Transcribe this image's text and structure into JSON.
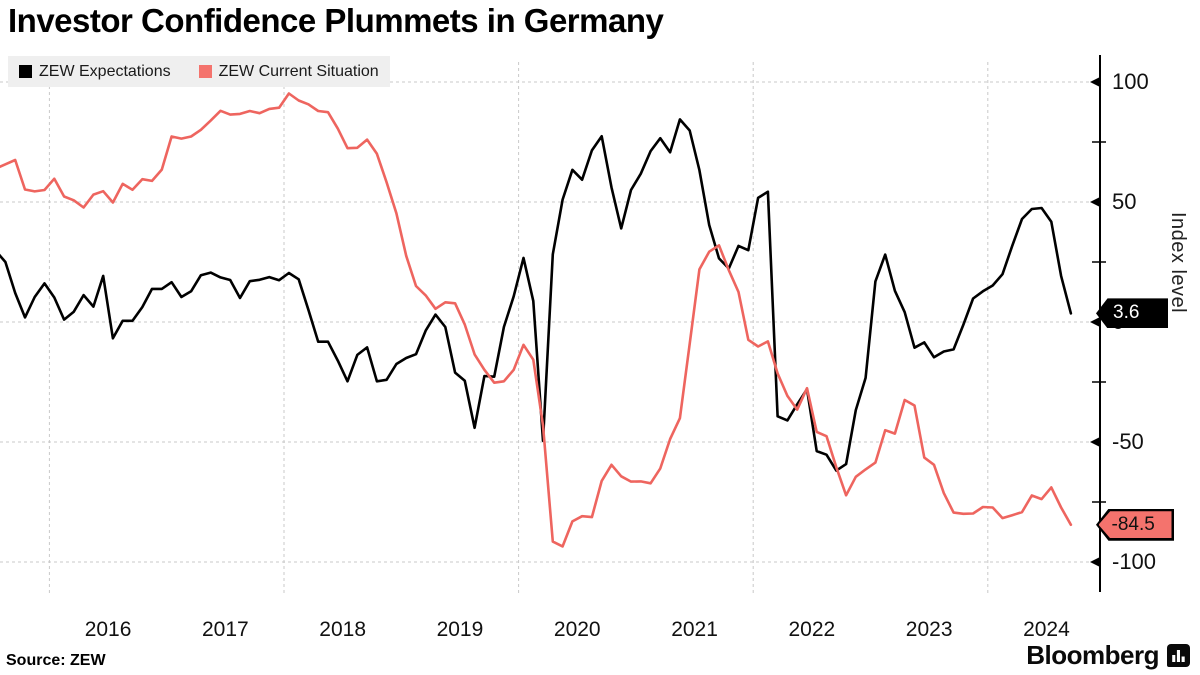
{
  "title": "Investor Confidence Plummets in Germany",
  "legend": [
    {
      "label": "ZEW Expectations",
      "color": "#000000"
    },
    {
      "label": "ZEW Current Situation",
      "color": "#f4736d"
    }
  ],
  "y_axis": {
    "label": "Index level",
    "ticks": [
      {
        "label": "100",
        "value": 100
      },
      {
        "label": "50",
        "value": 50
      },
      {
        "label": "0",
        "value": 0
      },
      {
        "label": "-50",
        "value": -50
      },
      {
        "label": "-100",
        "value": -100
      }
    ],
    "gridline_values": [
      100,
      50,
      0,
      -50,
      -100
    ],
    "minor_tick_values": [
      75,
      25,
      -25,
      -75
    ]
  },
  "x_axis": {
    "years": [
      "2016",
      "2017",
      "2018",
      "2019",
      "2020",
      "2021",
      "2022",
      "2023",
      "2024"
    ],
    "gridline_years": [
      2016,
      2018,
      2020,
      2022,
      2024
    ]
  },
  "source": "Source: ZEW",
  "brand": "Bloomberg",
  "chart_data": {
    "type": "line",
    "title": "Investor Confidence Plummets in Germany",
    "xlabel": "",
    "ylabel": "Index level",
    "ylim": [
      -110,
      110
    ],
    "x_start": "2015-07",
    "x_end": "2024-09",
    "frequency": "monthly",
    "grid": "dashed",
    "legend_position": "top-left",
    "series": [
      {
        "name": "ZEW Expectations",
        "color": "#000000",
        "end_label": "3.6",
        "end_value": 3.6,
        "values": [
          29.7,
          25.0,
          12.1,
          1.9,
          10.4,
          16.1,
          10.2,
          1.0,
          4.3,
          11.2,
          6.4,
          19.2,
          -6.8,
          0.5,
          0.5,
          6.2,
          13.8,
          13.8,
          16.6,
          10.4,
          12.8,
          19.5,
          20.6,
          18.6,
          17.5,
          10.0,
          17.0,
          17.6,
          18.7,
          17.4,
          20.4,
          17.8,
          5.1,
          -8.2,
          -8.2,
          -16.1,
          -24.7,
          -13.7,
          -10.6,
          -24.7,
          -24.1,
          -17.5,
          -15.0,
          -13.4,
          -3.6,
          3.1,
          -2.1,
          -21.1,
          -24.5,
          -44.1,
          -22.5,
          -22.8,
          -2.1,
          10.7,
          26.7,
          8.7,
          -49.5,
          28.2,
          51.0,
          63.4,
          59.3,
          71.5,
          77.4,
          56.1,
          39.0,
          55.0,
          61.8,
          71.2,
          76.6,
          70.7,
          84.4,
          79.8,
          63.3,
          40.4,
          26.5,
          22.3,
          31.7,
          29.9,
          51.7,
          54.3,
          -39.3,
          -41.0,
          -34.3,
          -28.0,
          -53.8,
          -55.3,
          -61.9,
          -59.2,
          -36.7,
          -23.3,
          16.9,
          28.1,
          13.0,
          4.1,
          -10.7,
          -8.5,
          -14.7,
          -12.3,
          -11.4,
          -1.1,
          9.8,
          12.8,
          15.2,
          19.9,
          31.7,
          42.9,
          47.1,
          47.5,
          41.8,
          19.2,
          3.6
        ]
      },
      {
        "name": "ZEW Current Situation",
        "color": "#ee655f",
        "end_label": "-84.5",
        "end_value": -84.5,
        "values": [
          63.9,
          65.7,
          67.5,
          55.2,
          54.4,
          55.0,
          59.7,
          52.3,
          50.7,
          47.7,
          53.1,
          54.5,
          49.8,
          57.6,
          55.1,
          59.5,
          58.8,
          63.5,
          77.3,
          76.4,
          77.3,
          80.1,
          83.9,
          88.0,
          86.4,
          86.7,
          87.9,
          87.0,
          88.8,
          89.3,
          95.2,
          92.3,
          90.7,
          87.9,
          87.4,
          80.6,
          72.4,
          72.6,
          76.0,
          70.1,
          58.2,
          45.3,
          27.6,
          15.0,
          11.1,
          5.5,
          8.2,
          7.8,
          -1.1,
          -13.5,
          -19.9,
          -25.3,
          -24.7,
          -19.9,
          -9.5,
          -15.7,
          -43.1,
          -91.5,
          -93.5,
          -83.1,
          -80.9,
          -81.3,
          -66.2,
          -59.5,
          -64.3,
          -66.5,
          -66.4,
          -67.2,
          -61.0,
          -48.8,
          -40.1,
          -9.1,
          21.9,
          29.3,
          31.9,
          21.6,
          12.5,
          -7.4,
          -10.2,
          -8.1,
          -21.4,
          -30.8,
          -36.5,
          -27.6,
          -45.8,
          -47.6,
          -60.5,
          -72.2,
          -64.5,
          -61.4,
          -58.6,
          -45.1,
          -46.5,
          -32.5,
          -34.8,
          -56.5,
          -59.5,
          -71.3,
          -79.4,
          -79.9,
          -79.8,
          -77.1,
          -77.3,
          -81.7,
          -80.5,
          -79.2,
          -72.3,
          -73.8,
          -68.9,
          -77.3,
          -84.5
        ]
      }
    ]
  }
}
